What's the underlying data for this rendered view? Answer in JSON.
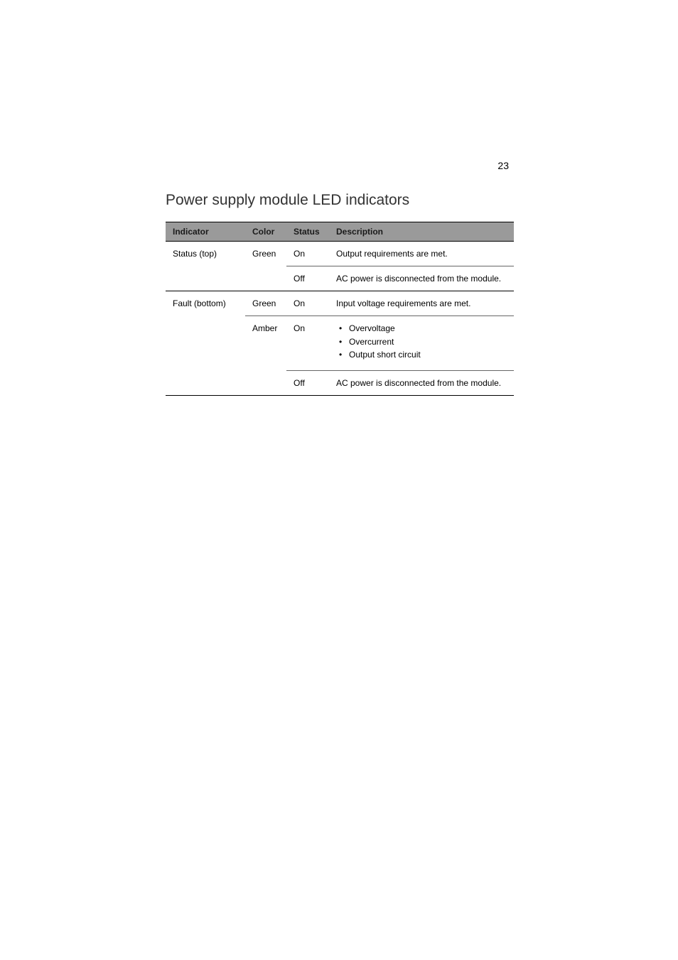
{
  "page_number": "23",
  "section_title": "Power supply module LED indicators",
  "table": {
    "headers": {
      "indicator": "Indicator",
      "color": "Color",
      "status": "Status",
      "description": "Description"
    },
    "rows": [
      {
        "indicator": "Status (top)",
        "color": "Green",
        "status": "On",
        "description": "Output requirements are met."
      },
      {
        "indicator": "",
        "color": "",
        "status": "Off",
        "description": "AC power is disconnected from the module."
      },
      {
        "indicator": "Fault (bottom)",
        "color": "Green",
        "status": "On",
        "description": "Input voltage requirements are met."
      },
      {
        "indicator": "",
        "color": "Amber",
        "status": "On",
        "bullets": [
          "Overvoltage",
          "Overcurrent",
          "Output short circuit"
        ]
      },
      {
        "indicator": "",
        "color": "",
        "status": "Off",
        "description": "AC power is disconnected from the module."
      }
    ]
  }
}
